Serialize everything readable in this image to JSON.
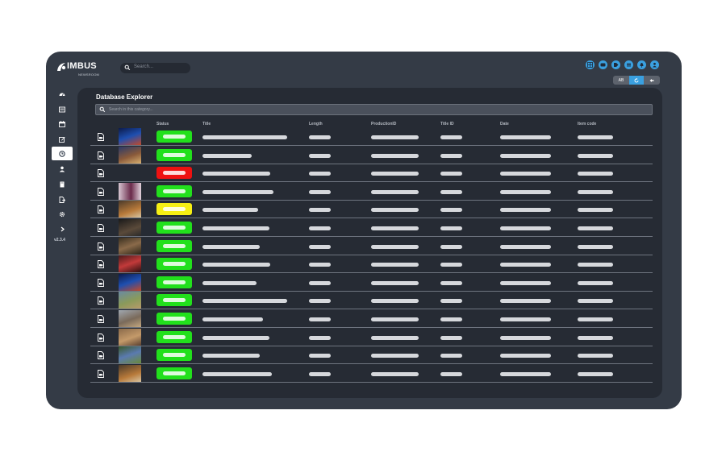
{
  "app": {
    "logo_text": "IMBUS",
    "logo_subtext": "NEWSROOM",
    "search_placeholder": "Search...",
    "version": "v2.3.4"
  },
  "top_icons": [
    "grid-icon",
    "ticket-icon",
    "tag-icon",
    "list-icon",
    "bell-icon",
    "user-icon"
  ],
  "view_toggle": {
    "first_label": "AB",
    "second_icon": "refresh-icon",
    "third_icon": "back-arrow-icon"
  },
  "sidebar": {
    "items": [
      {
        "icon": "dashboard-icon",
        "active": false
      },
      {
        "icon": "news-icon",
        "active": false
      },
      {
        "icon": "calendar-icon",
        "active": false
      },
      {
        "icon": "edit-icon",
        "active": false
      },
      {
        "icon": "clock-icon",
        "active": true
      },
      {
        "icon": "user-icon",
        "active": false
      },
      {
        "icon": "book-icon",
        "active": false
      },
      {
        "icon": "file-export-icon",
        "active": false
      },
      {
        "icon": "gear-icon",
        "active": false
      },
      {
        "icon": "chevron-right-icon",
        "active": false
      }
    ]
  },
  "explorer": {
    "title": "Database Explorer",
    "search_placeholder": "Search in this category...",
    "columns": [
      "Status",
      "Title",
      "Length",
      "ProductionID",
      "Title ID",
      "Date",
      "Item code"
    ],
    "status_colors": {
      "green": "#22e01c",
      "red": "#ee1111",
      "yellow": "#f6ef14"
    },
    "rows": [
      {
        "status": "green",
        "thumbnail": "blue"
      },
      {
        "status": "green",
        "thumbnail": "stage"
      },
      {
        "status": "red",
        "thumbnail": "none"
      },
      {
        "status": "green",
        "thumbnail": "purple"
      },
      {
        "status": "yellow",
        "thumbnail": "desert"
      },
      {
        "status": "green",
        "thumbnail": "dark"
      },
      {
        "status": "green",
        "thumbnail": "crowd"
      },
      {
        "status": "green",
        "thumbnail": "red"
      },
      {
        "status": "green",
        "thumbnail": "blue"
      },
      {
        "status": "green",
        "thumbnail": "outdoor"
      },
      {
        "status": "green",
        "thumbnail": "building"
      },
      {
        "status": "green",
        "thumbnail": "market"
      },
      {
        "status": "green",
        "thumbnail": "garden"
      },
      {
        "status": "green",
        "thumbnail": "desert"
      }
    ]
  }
}
